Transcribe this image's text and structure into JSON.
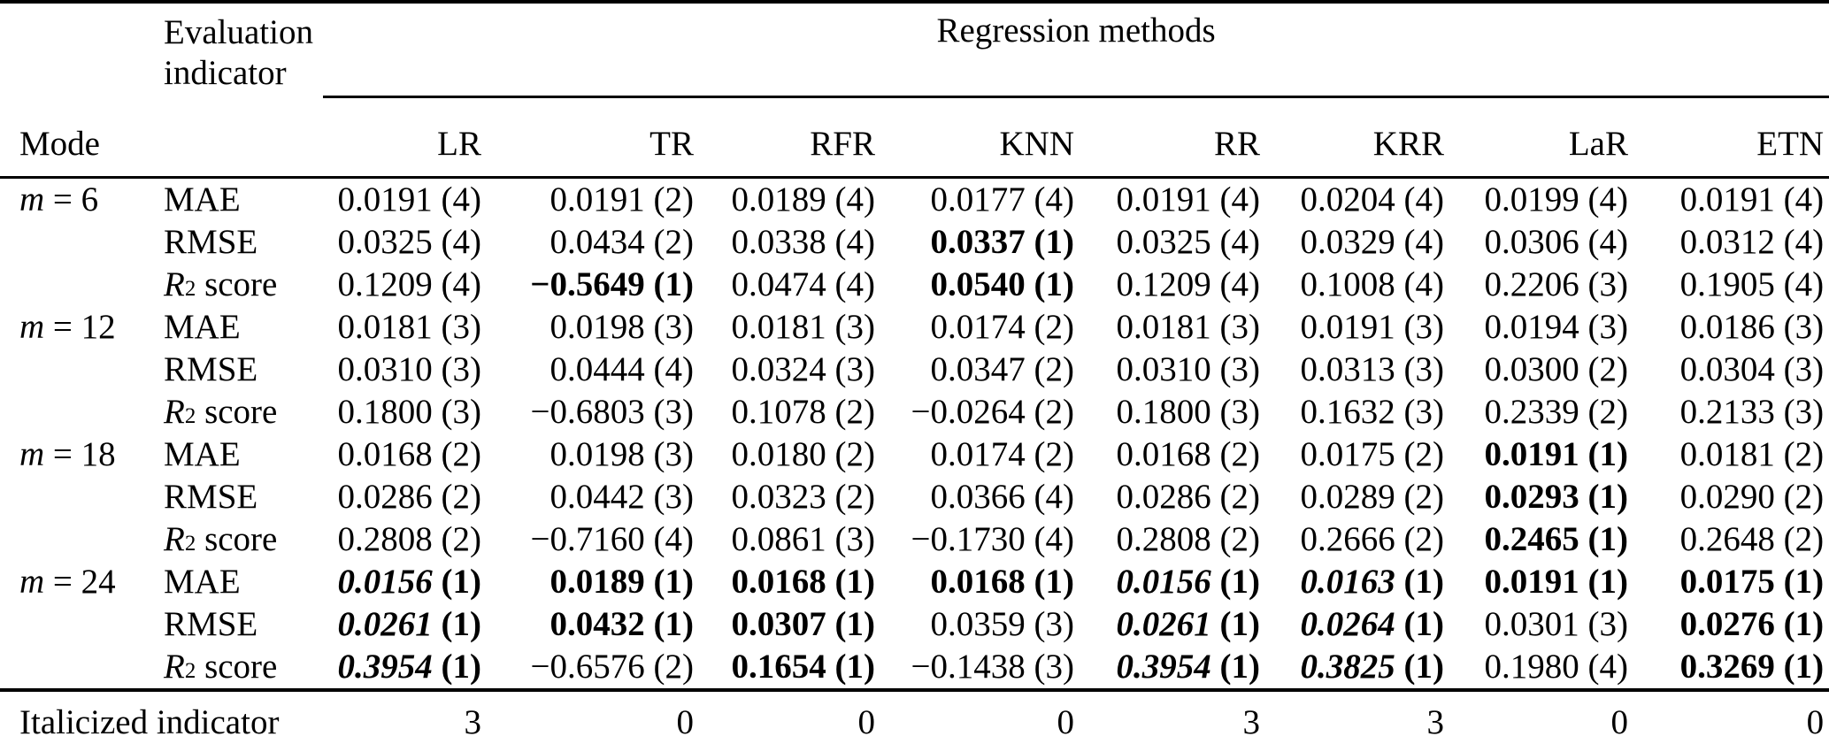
{
  "colors": {
    "text": "#000000",
    "background": "#ffffff"
  },
  "table": {
    "eval_indicator_label": "Evaluation indicator",
    "regression_methods_label": "Regression methods",
    "mode_label": "Mode",
    "columns": [
      "LR",
      "TR",
      "RFR",
      "KNN",
      "RR",
      "KRR",
      "LaR",
      "ETN"
    ],
    "groups": [
      {
        "mode": "m = 6",
        "rows": [
          {
            "indicator": "MAE",
            "cells": [
              [
                "0.0191",
                "4",
                "n"
              ],
              [
                "0.0191",
                "2",
                "n"
              ],
              [
                "0.0189",
                "4",
                "n"
              ],
              [
                "0.0177",
                "4",
                "n"
              ],
              [
                "0.0191",
                "4",
                "n"
              ],
              [
                "0.0204",
                "4",
                "n"
              ],
              [
                "0.0199",
                "4",
                "n"
              ],
              [
                "0.0191",
                "4",
                "n"
              ]
            ]
          },
          {
            "indicator": "RMSE",
            "cells": [
              [
                "0.0325",
                "4",
                "n"
              ],
              [
                "0.0434",
                "2",
                "n"
              ],
              [
                "0.0338",
                "4",
                "n"
              ],
              [
                "0.0337",
                "1",
                "b"
              ],
              [
                "0.0325",
                "4",
                "n"
              ],
              [
                "0.0329",
                "4",
                "n"
              ],
              [
                "0.0306",
                "4",
                "n"
              ],
              [
                "0.0312",
                "4",
                "n"
              ]
            ]
          },
          {
            "indicator": "R^2 score",
            "cells": [
              [
                "0.1209",
                "4",
                "n"
              ],
              [
                "−0.5649",
                "1",
                "b"
              ],
              [
                "0.0474",
                "4",
                "n"
              ],
              [
                "0.0540",
                "1",
                "b"
              ],
              [
                "0.1209",
                "4",
                "n"
              ],
              [
                "0.1008",
                "4",
                "n"
              ],
              [
                "0.2206",
                "3",
                "n"
              ],
              [
                "0.1905",
                "4",
                "n"
              ]
            ]
          }
        ]
      },
      {
        "mode": "m = 12",
        "rows": [
          {
            "indicator": "MAE",
            "cells": [
              [
                "0.0181",
                "3",
                "n"
              ],
              [
                "0.0198",
                "3",
                "n"
              ],
              [
                "0.0181",
                "3",
                "n"
              ],
              [
                "0.0174",
                "2",
                "n"
              ],
              [
                "0.0181",
                "3",
                "n"
              ],
              [
                "0.0191",
                "3",
                "n"
              ],
              [
                "0.0194",
                "3",
                "n"
              ],
              [
                "0.0186",
                "3",
                "n"
              ]
            ]
          },
          {
            "indicator": "RMSE",
            "cells": [
              [
                "0.0310",
                "3",
                "n"
              ],
              [
                "0.0444",
                "4",
                "n"
              ],
              [
                "0.0324",
                "3",
                "n"
              ],
              [
                "0.0347",
                "2",
                "n"
              ],
              [
                "0.0310",
                "3",
                "n"
              ],
              [
                "0.0313",
                "3",
                "n"
              ],
              [
                "0.0300",
                "2",
                "n"
              ],
              [
                "0.0304",
                "3",
                "n"
              ]
            ]
          },
          {
            "indicator": "R^2 score",
            "cells": [
              [
                "0.1800",
                "3",
                "n"
              ],
              [
                "−0.6803",
                "3",
                "n"
              ],
              [
                "0.1078",
                "2",
                "n"
              ],
              [
                "−0.0264",
                "2",
                "n"
              ],
              [
                "0.1800",
                "3",
                "n"
              ],
              [
                "0.1632",
                "3",
                "n"
              ],
              [
                "0.2339",
                "2",
                "n"
              ],
              [
                "0.2133",
                "3",
                "n"
              ]
            ]
          }
        ]
      },
      {
        "mode": "m = 18",
        "rows": [
          {
            "indicator": "MAE",
            "cells": [
              [
                "0.0168",
                "2",
                "n"
              ],
              [
                "0.0198",
                "3",
                "n"
              ],
              [
                "0.0180",
                "2",
                "n"
              ],
              [
                "0.0174",
                "2",
                "n"
              ],
              [
                "0.0168",
                "2",
                "n"
              ],
              [
                "0.0175",
                "2",
                "n"
              ],
              [
                "0.0191",
                "1",
                "b"
              ],
              [
                "0.0181",
                "2",
                "n"
              ]
            ]
          },
          {
            "indicator": "RMSE",
            "cells": [
              [
                "0.0286",
                "2",
                "n"
              ],
              [
                "0.0442",
                "3",
                "n"
              ],
              [
                "0.0323",
                "2",
                "n"
              ],
              [
                "0.0366",
                "4",
                "n"
              ],
              [
                "0.0286",
                "2",
                "n"
              ],
              [
                "0.0289",
                "2",
                "n"
              ],
              [
                "0.0293",
                "1",
                "b"
              ],
              [
                "0.0290",
                "2",
                "n"
              ]
            ]
          },
          {
            "indicator": "R^2 score",
            "cells": [
              [
                "0.2808",
                "2",
                "n"
              ],
              [
                "−0.7160",
                "4",
                "n"
              ],
              [
                "0.0861",
                "3",
                "n"
              ],
              [
                "−0.1730",
                "4",
                "n"
              ],
              [
                "0.2808",
                "2",
                "n"
              ],
              [
                "0.2666",
                "2",
                "n"
              ],
              [
                "0.2465",
                "1",
                "b"
              ],
              [
                "0.2648",
                "2",
                "n"
              ]
            ]
          }
        ]
      },
      {
        "mode": "m = 24",
        "rows": [
          {
            "indicator": "MAE",
            "cells": [
              [
                "0.0156",
                "1",
                "bi"
              ],
              [
                "0.0189",
                "1",
                "b"
              ],
              [
                "0.0168",
                "1",
                "b"
              ],
              [
                "0.0168",
                "1",
                "b"
              ],
              [
                "0.0156",
                "1",
                "bi"
              ],
              [
                "0.0163",
                "1",
                "bi"
              ],
              [
                "0.0191",
                "1",
                "b"
              ],
              [
                "0.0175",
                "1",
                "b"
              ]
            ]
          },
          {
            "indicator": "RMSE",
            "cells": [
              [
                "0.0261",
                "1",
                "bi"
              ],
              [
                "0.0432",
                "1",
                "b"
              ],
              [
                "0.0307",
                "1",
                "b"
              ],
              [
                "0.0359",
                "3",
                "n"
              ],
              [
                "0.0261",
                "1",
                "bi"
              ],
              [
                "0.0264",
                "1",
                "bi"
              ],
              [
                "0.0301",
                "3",
                "n"
              ],
              [
                "0.0276",
                "1",
                "b"
              ]
            ]
          },
          {
            "indicator": "R^2 score",
            "cells": [
              [
                "0.3954",
                "1",
                "bi"
              ],
              [
                "−0.6576",
                "2",
                "n"
              ],
              [
                "0.1654",
                "1",
                "b"
              ],
              [
                "−0.1438",
                "3",
                "n"
              ],
              [
                "0.3954",
                "1",
                "bi"
              ],
              [
                "0.3825",
                "1",
                "bi"
              ],
              [
                "0.1980",
                "4",
                "n"
              ],
              [
                "0.3269",
                "1",
                "b"
              ]
            ]
          }
        ]
      }
    ],
    "footer": {
      "label": "Italicized indicator",
      "values": [
        "3",
        "0",
        "0",
        "0",
        "3",
        "3",
        "0",
        "0"
      ]
    }
  }
}
